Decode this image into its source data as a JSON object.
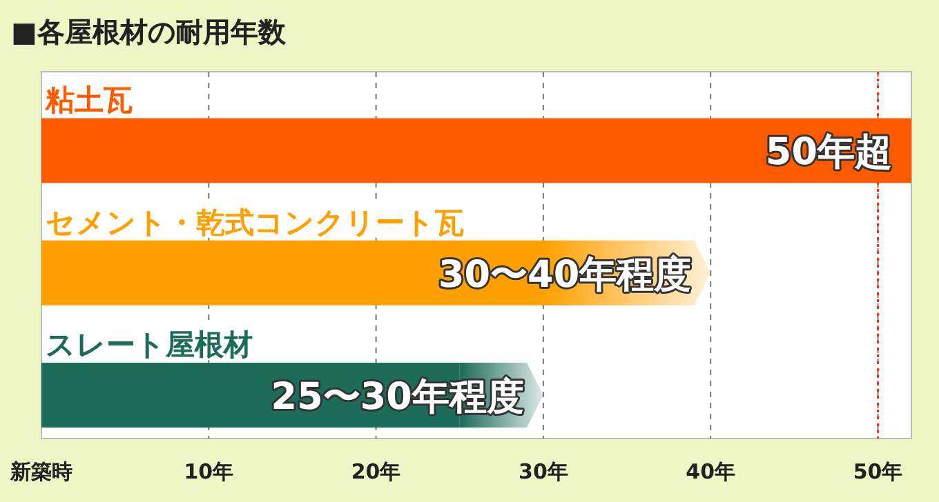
{
  "chart_data": {
    "type": "bar",
    "orientation": "horizontal",
    "stacked": true,
    "title": "■各屋根材の耐用年数",
    "categories": [
      "粘土瓦",
      "セメント・乾式コンクリート瓦",
      "スレート屋根材"
    ],
    "series": [
      {
        "colors": [
          "#ff5a00",
          "#ffa000",
          "#1d6b59"
        ],
        "values": [
          52,
          30,
          25
        ]
      },
      {
        "colors": [
          null,
          "#ffa000",
          "#1d6b59"
        ],
        "values": [
          null,
          10,
          5
        ]
      }
    ],
    "annotations": [
      {
        "text": "50年超",
        "x": 52,
        "y": "粘土瓦"
      },
      {
        "text": "30〜40年程度",
        "x": 40,
        "y": "セメント・乾式コンクリート瓦"
      },
      {
        "text": "25〜30年程度",
        "x": 30,
        "y": "スレート屋根材"
      }
    ],
    "xlim": [
      0,
      52
    ],
    "xticks": [
      {
        "value": 0,
        "label": "新築時"
      },
      {
        "value": 10,
        "label": "10年"
      },
      {
        "value": 20,
        "label": "20年"
      },
      {
        "value": 30,
        "label": "30年"
      },
      {
        "value": 40,
        "label": "40年"
      },
      {
        "value": 50,
        "label": "50年"
      }
    ],
    "grid": "x",
    "ref_lines": [
      {
        "axis": "x",
        "value": 50,
        "color": "#ff3300",
        "line_style": "dotted"
      }
    ]
  }
}
